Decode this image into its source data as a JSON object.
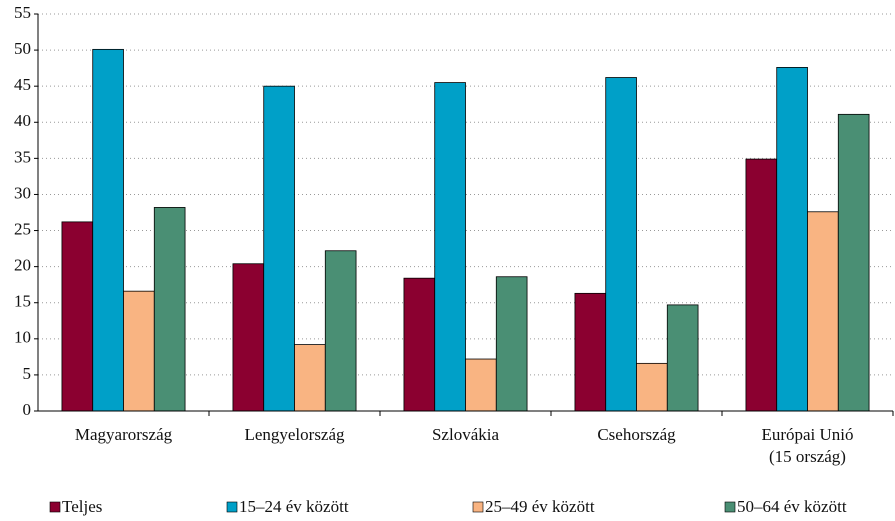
{
  "chart_data": {
    "type": "bar",
    "categories": [
      "Magyarország",
      "Lengyelország",
      "Szlovákia",
      "Csehország",
      "Európai Unió\n(15 ország)"
    ],
    "series": [
      {
        "name": "Teljes",
        "color": "#8b0030",
        "values": [
          26.2,
          20.4,
          18.4,
          16.3,
          34.9
        ]
      },
      {
        "name": "15–24 év között",
        "color": "#00a0c8",
        "values": [
          50.1,
          45.0,
          45.5,
          46.2,
          47.6
        ]
      },
      {
        "name": "25–49 év között",
        "color": "#f9b482",
        "values": [
          16.6,
          9.2,
          7.2,
          6.6,
          27.6
        ]
      },
      {
        "name": "50–64 év között",
        "color": "#4a8f74",
        "values": [
          28.2,
          22.2,
          18.6,
          14.7,
          41.1
        ]
      }
    ],
    "ylim": [
      0,
      55
    ],
    "yticks": [
      0,
      5,
      10,
      15,
      20,
      25,
      30,
      35,
      40,
      45,
      50,
      55
    ],
    "grid": true,
    "legend": "bottom"
  }
}
